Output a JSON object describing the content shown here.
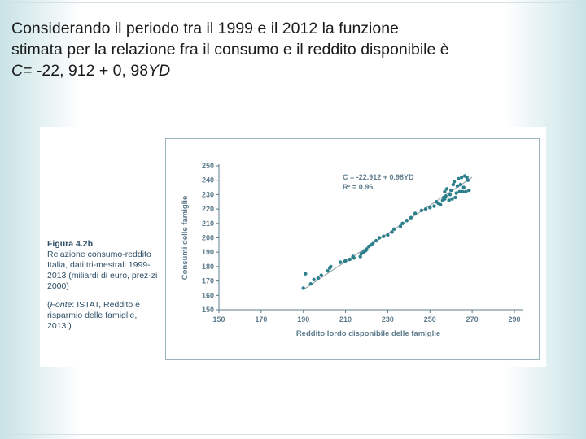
{
  "slide": {
    "line1": "Considerando il periodo tra il 1999 e il 2012 la funzione",
    "line2": "stimata per la relazione fra il consumo e il reddito disponibile è",
    "formula_var_c": "C",
    "formula_mid": "= -22, 912 + 0, 98",
    "formula_var_yd": "YD"
  },
  "caption": {
    "figure_number": "Figura 4.2b",
    "description": "Relazione consumo-reddito Italia, dati tri-mestrali 1999-2013 (miliardi di euro, prez-zi 2000)",
    "fonte_open": "(",
    "fonte_label": "Fonte",
    "fonte_rest": ": ISTAT, Reddito e risparmio delle famiglie, 2013.)"
  },
  "chart_data": {
    "type": "scatter",
    "xlabel": "Reddito lordo disponibile delle famiglie",
    "ylabel": "Consumi delle famiglie",
    "xlim": [
      150,
      290
    ],
    "ylim": [
      150,
      250
    ],
    "x_ticks": [
      150,
      170,
      190,
      210,
      230,
      250,
      270,
      290
    ],
    "y_ticks": [
      150,
      160,
      170,
      180,
      190,
      200,
      210,
      220,
      230,
      240,
      250
    ],
    "grid": false,
    "annotation": {
      "equation": "C = -22.912 + 0.98YD",
      "r2": "R² = 0.96"
    },
    "fit_line": {
      "x1": 190,
      "y1": 164,
      "x2": 270,
      "y2": 242
    },
    "points": [
      [
        190.0,
        165.0
      ],
      [
        191.0,
        175.0
      ],
      [
        193.5,
        168.0
      ],
      [
        195.0,
        171.0
      ],
      [
        197.0,
        172.0
      ],
      [
        198.5,
        174.0
      ],
      [
        201.5,
        177.0
      ],
      [
        202.5,
        179.0
      ],
      [
        203.0,
        180.0
      ],
      [
        207.5,
        183.0
      ],
      [
        209.5,
        183.5
      ],
      [
        210.0,
        184.0
      ],
      [
        212.0,
        185.0
      ],
      [
        213.5,
        187.0
      ],
      [
        214.0,
        186.0
      ],
      [
        217.0,
        187.0
      ],
      [
        217.5,
        189.0
      ],
      [
        218.5,
        190.0
      ],
      [
        219.5,
        191.0
      ],
      [
        220.0,
        192.0
      ],
      [
        221.0,
        194.0
      ],
      [
        222.0,
        195.0
      ],
      [
        223.0,
        196.0
      ],
      [
        224.5,
        198.0
      ],
      [
        226.0,
        200.0
      ],
      [
        228.0,
        201.0
      ],
      [
        230.0,
        202.0
      ],
      [
        232.0,
        204.0
      ],
      [
        233.0,
        206.0
      ],
      [
        236.0,
        208.0
      ],
      [
        237.0,
        210.0
      ],
      [
        239.0,
        212.0
      ],
      [
        241.0,
        214.0
      ],
      [
        243.0,
        217.0
      ],
      [
        246.0,
        219.0
      ],
      [
        248.0,
        220.0
      ],
      [
        250.0,
        221.0
      ],
      [
        252.0,
        222.0
      ],
      [
        253.0,
        225.0
      ],
      [
        254.0,
        224.0
      ],
      [
        255.0,
        223.0
      ],
      [
        256.0,
        226.0
      ],
      [
        256.5,
        228.0
      ],
      [
        257.0,
        227.0
      ],
      [
        257.0,
        232.0
      ],
      [
        257.5,
        229.0
      ],
      [
        258.0,
        234.0
      ],
      [
        259.0,
        226.0
      ],
      [
        259.5,
        230.0
      ],
      [
        260.0,
        233.0
      ],
      [
        260.5,
        227.0
      ],
      [
        261.0,
        237.0
      ],
      [
        261.5,
        239.0
      ],
      [
        262.0,
        228.0
      ],
      [
        262.5,
        231.0
      ],
      [
        263.0,
        236.0
      ],
      [
        263.5,
        241.0
      ],
      [
        264.0,
        232.0
      ],
      [
        264.5,
        237.0
      ],
      [
        265.0,
        242.0
      ],
      [
        265.5,
        232.0
      ],
      [
        266.0,
        235.0
      ],
      [
        266.5,
        243.0
      ],
      [
        267.0,
        232.0
      ],
      [
        267.5,
        242.0
      ],
      [
        268.0,
        240.0
      ],
      [
        268.5,
        233.0
      ]
    ],
    "colors": {
      "points": "#2d7f8c",
      "fit_line": "#9aa9ad",
      "axis": "#5d7b8c",
      "caption": "#2f4f66"
    }
  }
}
